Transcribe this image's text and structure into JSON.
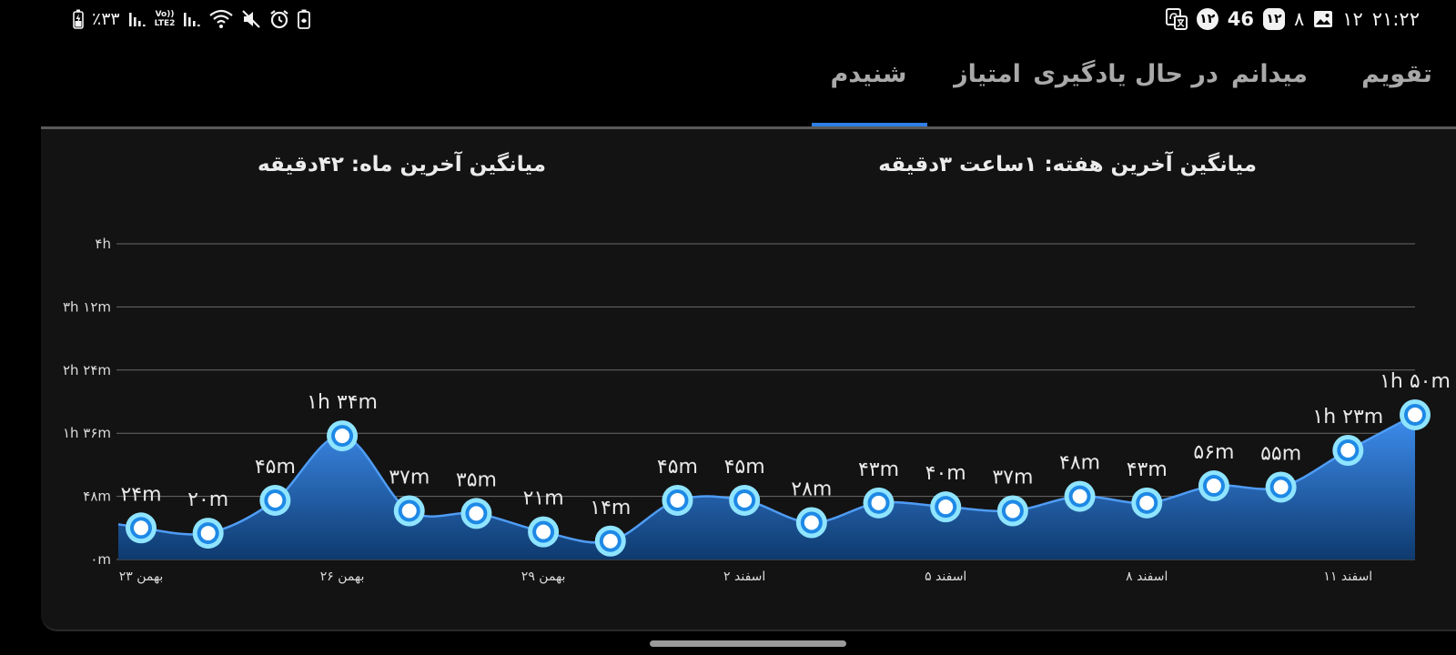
{
  "status_bar": {
    "time": "۲۱:۲۲",
    "date_day": "۱۲",
    "notif_count": "۸",
    "badge_square": "۱۲",
    "network_speed": "46",
    "badge_circle": "۱۲",
    "battery_percent": "٪۳۳",
    "lte_label_top": "Vo))",
    "lte_label_bottom": "LTE2",
    "icons_left": [
      "battery-charging-icon",
      "signal-icon",
      "lte-icon",
      "signal-icon",
      "wifi-icon",
      "mute-icon",
      "alarm-icon",
      "battery-saver-icon"
    ],
    "icons_right": [
      "gallery-icon",
      "translate-icon"
    ]
  },
  "tabs": [
    {
      "label": "تقویم",
      "active": false
    },
    {
      "label": "میدانم",
      "active": false
    },
    {
      "label": "در حال یادگیری",
      "active": false
    },
    {
      "label": "امتیاز",
      "active": false
    },
    {
      "label": "شنیدم",
      "active": true
    }
  ],
  "averages": {
    "week": "میانگین آخرین هفته: ۱ساعت  ۳دقیقه",
    "month": "میانگین آخرین ماه: ۴۲دقیقه"
  },
  "colors": {
    "accent": "#2f7fe8",
    "area_top": "#3e8ef0",
    "area_bottom": "#0e3a6e",
    "point_ring": "#8fe4ff",
    "background": "#131313"
  },
  "chart_data": {
    "type": "area",
    "y_unit": "minutes",
    "ylim": [
      0,
      240
    ],
    "y_ticks": [
      {
        "value": 0,
        "label": "۰m"
      },
      {
        "value": 48,
        "label": "۴۸m"
      },
      {
        "value": 96,
        "label": "۱h ۳۶m"
      },
      {
        "value": 144,
        "label": "۲h ۲۴m"
      },
      {
        "value": 192,
        "label": "۳h ۱۲m"
      },
      {
        "value": 240,
        "label": "۴h"
      }
    ],
    "x_ticks": [
      {
        "index": 0,
        "label": "۲۳ بهمن"
      },
      {
        "index": 3,
        "label": "۲۶ بهمن"
      },
      {
        "index": 6,
        "label": "۲۹ بهمن"
      },
      {
        "index": 9,
        "label": "۲ اسفند"
      },
      {
        "index": 12,
        "label": "۵ اسفند"
      },
      {
        "index": 15,
        "label": "۸ اسفند"
      },
      {
        "index": 18,
        "label": "۱۱ اسفند"
      }
    ],
    "grid": true,
    "values": [
      24,
      20,
      45,
      94,
      37,
      35,
      21,
      14,
      45,
      45,
      28,
      43,
      40,
      37,
      48,
      43,
      56,
      55,
      83,
      110
    ],
    "labels": [
      "۲۴m",
      "۲۰m",
      "۴۵m",
      "۱h ۳۴m",
      "۳۷m",
      "۳۵m",
      "۲۱m",
      "۱۴m",
      "۴۵m",
      "۴۵m",
      "۲۸m",
      "۴۳m",
      "۴۰m",
      "۳۷m",
      "۴۸m",
      "۴۳m",
      "۵۶m",
      "۵۵m",
      "۱h ۲۳m",
      "۱h ۵۰m"
    ]
  }
}
